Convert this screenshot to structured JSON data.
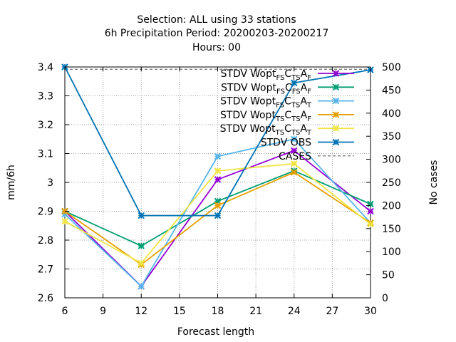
{
  "chart_data": {
    "type": "line",
    "title_lines": [
      "Selection: ALL using    33 stations",
      "6h Precipitation   Period: 20200203-20200217",
      "Hours:  00"
    ],
    "xlabel": "Forecast length",
    "ylabel": "mm/6h",
    "y2label": "No cases",
    "x": [
      6,
      12,
      18,
      24,
      30
    ],
    "xticks": [
      6,
      9,
      12,
      15,
      18,
      21,
      24,
      27,
      30
    ],
    "xlim": [
      6,
      30
    ],
    "ylim": [
      2.6,
      3.4
    ],
    "yticks": [
      2.6,
      2.7,
      2.8,
      2.9,
      3,
      3.1,
      3.2,
      3.3,
      3.4
    ],
    "y2lim": [
      0,
      500
    ],
    "y2ticks": [
      0,
      50,
      100,
      150,
      200,
      250,
      300,
      350,
      400,
      450,
      500
    ],
    "grid": true,
    "legend_position": "top-right",
    "series": [
      {
        "name_parts": [
          [
            "STDV Wopt",
            ""
          ],
          [
            "FS",
            "sub"
          ],
          [
            "C",
            ""
          ],
          [
            "TS",
            "sub"
          ],
          [
            "A",
            ""
          ],
          [
            "F",
            "sub"
          ]
        ],
        "color": "#9400d3",
        "marker": "x",
        "values": [
          2.9,
          2.64,
          3.01,
          3.11,
          2.9
        ]
      },
      {
        "name_parts": [
          [
            "STDV Wopt",
            ""
          ],
          [
            "FS",
            "sub"
          ],
          [
            "C",
            ""
          ],
          [
            "FS",
            "sub"
          ],
          [
            "A",
            ""
          ],
          [
            "F",
            "sub"
          ]
        ],
        "color": "#009e73",
        "marker": "x",
        "values": [
          2.9,
          2.78,
          2.935,
          3.04,
          2.925
        ]
      },
      {
        "name_parts": [
          [
            "STDV Wopt",
            ""
          ],
          [
            "FS",
            "sub"
          ],
          [
            "C",
            ""
          ],
          [
            "TS",
            "sub"
          ],
          [
            "A",
            ""
          ],
          [
            "T",
            "sub"
          ]
        ],
        "color": "#56b4e9",
        "marker": "x",
        "values": [
          2.89,
          2.64,
          3.09,
          3.15,
          2.86
        ]
      },
      {
        "name_parts": [
          [
            "STDV Wopt",
            ""
          ],
          [
            "TS",
            "sub"
          ],
          [
            "C",
            ""
          ],
          [
            "TS",
            "sub"
          ],
          [
            "A",
            ""
          ],
          [
            "F",
            "sub"
          ]
        ],
        "color": "#e69f00",
        "marker": "x",
        "values": [
          2.9,
          2.715,
          2.92,
          3.035,
          2.86
        ]
      },
      {
        "name_parts": [
          [
            "STDV Wopt",
            ""
          ],
          [
            "TS",
            "sub"
          ],
          [
            "C",
            ""
          ],
          [
            "TS",
            "sub"
          ],
          [
            "A",
            ""
          ],
          [
            "T",
            "sub"
          ]
        ],
        "color": "#f0e442",
        "marker": "x",
        "values": [
          2.865,
          2.72,
          3.04,
          3.065,
          2.855
        ]
      },
      {
        "name_parts": [
          [
            "STDV OBS",
            ""
          ]
        ],
        "color": "#0072b2",
        "marker": "x",
        "values": [
          3.4,
          2.885,
          2.885,
          3.345,
          3.39
        ]
      }
    ],
    "cases": {
      "name": "CASES",
      "color": "#888888",
      "values": [
        495,
        495,
        495,
        495,
        495
      ]
    }
  }
}
